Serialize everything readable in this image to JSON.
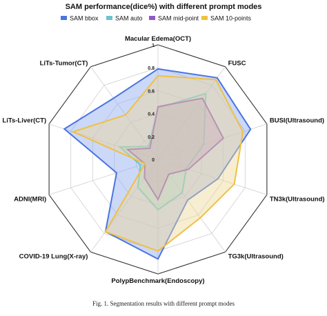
{
  "chart_data": {
    "type": "radar",
    "title": "SAM performance(dice%) with different prompt modes",
    "caption": "Fig. 1.  Segmentation results with different prompt modes",
    "axes": [
      "Macular Edema(OCT)",
      "FUSC",
      "BUSI(Ultrasound)",
      "TN3k(Ultrasound)",
      "TG3k(Ultrasound)",
      "PolypBenchmark(Endoscopy)",
      "COVID-19 Lung(X-ray)",
      "ADNI(MRI)",
      "LiTs-Liver(CT)",
      "LiTs-Tumor(CT)"
    ],
    "rlim": [
      0,
      1
    ],
    "ticks": [
      0,
      0.2,
      0.4,
      0.6,
      0.8,
      1
    ],
    "tick_labels": [
      "0",
      "0.2",
      "0.4",
      "0.6",
      "0.8",
      "1"
    ],
    "series": [
      {
        "name": "SAM bbox",
        "color": "#4a74e0",
        "fill": "#8fa9f0",
        "values": [
          0.79,
          0.88,
          0.85,
          0.55,
          0.44,
          0.87,
          0.78,
          0.38,
          0.86,
          0.66
        ]
      },
      {
        "name": "SAM auto",
        "color": "#6cc3cf",
        "fill": "#a7dcdc",
        "values": [
          0.45,
          0.71,
          0.42,
          0.26,
          0.36,
          0.44,
          0.3,
          0.16,
          0.35,
          0.14
        ]
      },
      {
        "name": "SAM mid-point",
        "color": "#8e59c8",
        "fill": "#b594d8",
        "values": [
          0.46,
          0.66,
          0.6,
          0.28,
          0.16,
          0.35,
          0.2,
          0.12,
          0.28,
          0.12
        ]
      },
      {
        "name": "SAM 10-points",
        "color": "#f0c040",
        "fill": "#eed79a",
        "values": [
          0.73,
          0.86,
          0.78,
          0.7,
          0.63,
          0.8,
          0.78,
          0.12,
          0.78,
          0.48
        ]
      }
    ],
    "legend": "top",
    "grid": true
  }
}
